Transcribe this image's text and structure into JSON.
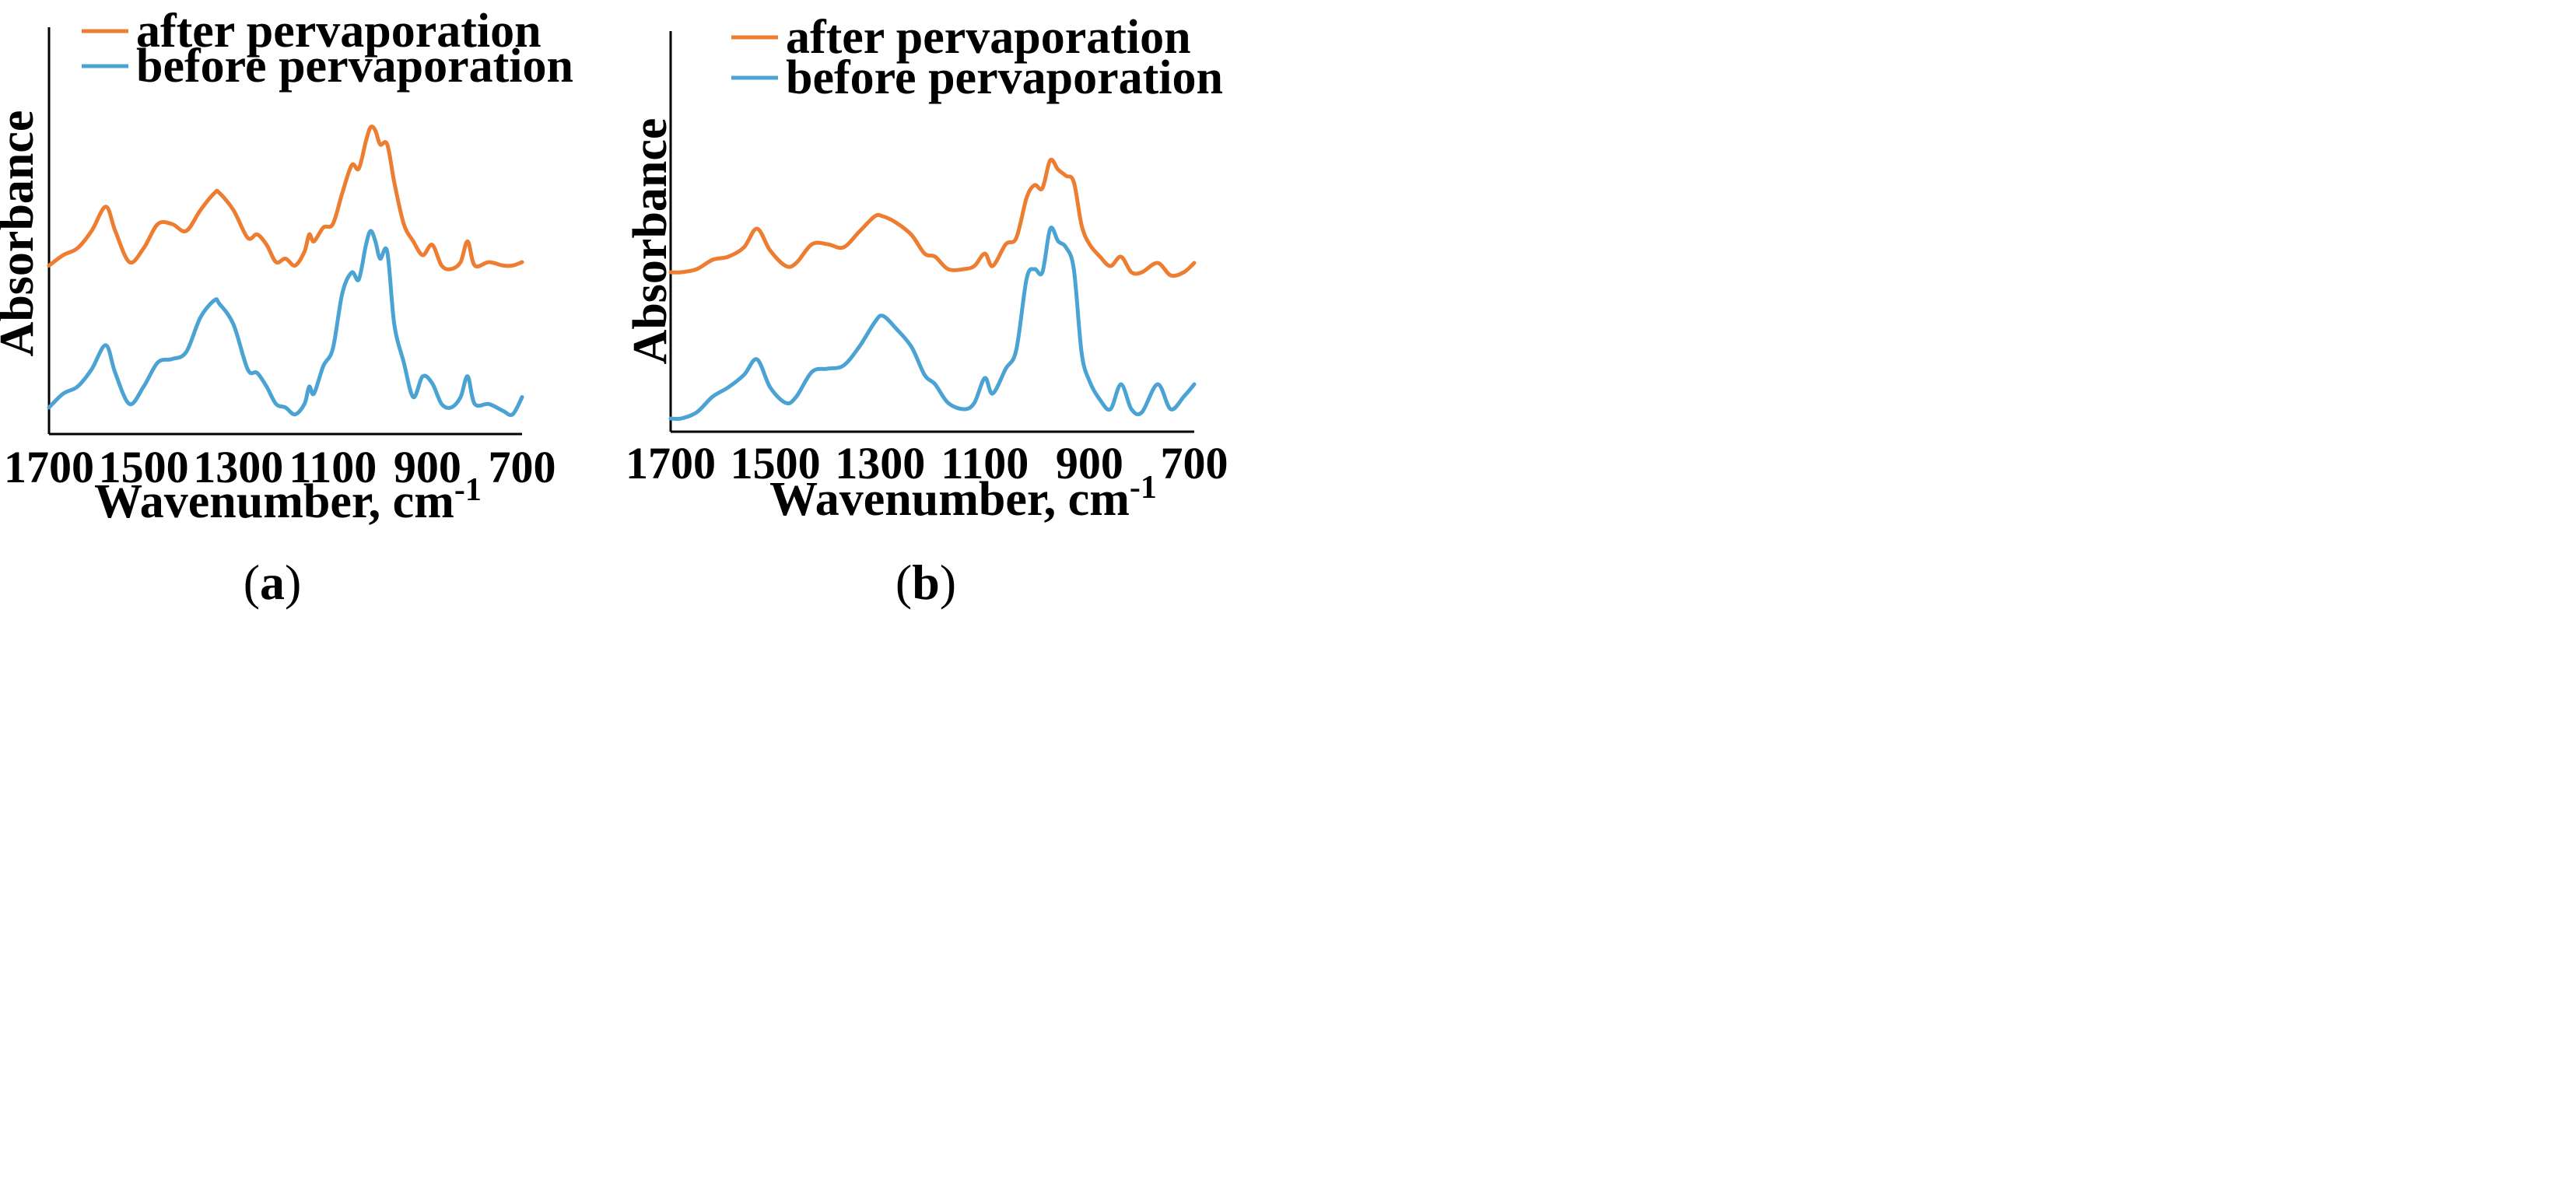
{
  "chart_data": [
    {
      "type": "line",
      "panel_label": "a",
      "title": "",
      "xlabel": "Wavenumber,  cm",
      "xlabel_superscript": "-1",
      "ylabel": "Absorbance",
      "xlim": [
        1700,
        700
      ],
      "ylim": [
        0,
        100
      ],
      "x_ticks": [
        1700,
        1500,
        1300,
        1100,
        900,
        700
      ],
      "legend_position": "top-left",
      "series": [
        {
          "name": "after pervaporation",
          "color": "#ED7D31",
          "x": [
            1700,
            1670,
            1640,
            1610,
            1580,
            1560,
            1530,
            1500,
            1470,
            1440,
            1410,
            1380,
            1350,
            1340,
            1310,
            1280,
            1260,
            1240,
            1220,
            1200,
            1180,
            1160,
            1150,
            1140,
            1120,
            1100,
            1080,
            1060,
            1045,
            1030,
            1020,
            1010,
            1000,
            985,
            970,
            950,
            930,
            910,
            890,
            870,
            850,
            830,
            815,
            800,
            770,
            740,
            720,
            700
          ],
          "values": [
            48,
            51,
            53,
            58,
            65,
            58,
            49,
            53,
            60,
            60,
            58,
            64,
            69,
            69,
            64,
            56,
            57,
            54,
            49,
            50,
            48,
            52,
            57,
            55,
            59,
            60,
            69,
            77,
            76,
            84,
            88,
            87,
            83,
            83,
            72,
            60,
            55,
            51,
            54,
            48,
            47,
            49,
            55,
            48,
            49,
            48,
            48,
            49
          ]
        },
        {
          "name": "before pervaporation",
          "color": "#4BA3D3",
          "x": [
            1700,
            1670,
            1640,
            1610,
            1580,
            1560,
            1530,
            1500,
            1470,
            1440,
            1410,
            1380,
            1350,
            1340,
            1310,
            1280,
            1260,
            1240,
            1220,
            1200,
            1180,
            1160,
            1150,
            1140,
            1120,
            1100,
            1080,
            1060,
            1045,
            1030,
            1020,
            1010,
            1000,
            985,
            970,
            950,
            930,
            910,
            890,
            870,
            850,
            830,
            815,
            800,
            770,
            740,
            720,
            700
          ],
          "values": [
            7,
            11,
            13,
            18,
            25,
            17,
            8,
            13,
            20,
            21,
            23,
            33,
            38,
            37,
            31,
            18,
            17,
            13,
            8,
            7,
            5,
            8,
            13,
            11,
            19,
            24,
            40,
            46,
            44,
            54,
            58,
            55,
            50,
            52,
            31,
            20,
            10,
            16,
            14,
            8,
            7,
            10,
            16,
            8,
            8,
            6,
            5,
            10
          ]
        }
      ]
    },
    {
      "type": "line",
      "panel_label": "b",
      "title": "",
      "xlabel": "Wavenumber,  cm",
      "xlabel_superscript": "-1",
      "ylabel": "Absorbance",
      "xlim": [
        1700,
        700
      ],
      "ylim": [
        0,
        100
      ],
      "x_ticks": [
        1700,
        1500,
        1300,
        1100,
        900,
        700
      ],
      "legend_position": "top-left",
      "series": [
        {
          "name": "after pervaporation",
          "color": "#ED7D31",
          "x": [
            1700,
            1680,
            1650,
            1620,
            1590,
            1560,
            1535,
            1510,
            1480,
            1460,
            1430,
            1400,
            1370,
            1340,
            1310,
            1295,
            1270,
            1240,
            1215,
            1195,
            1170,
            1140,
            1120,
            1100,
            1085,
            1060,
            1040,
            1020,
            1005,
            990,
            975,
            960,
            945,
            930,
            915,
            900,
            880,
            860,
            840,
            820,
            800,
            770,
            745,
            720,
            700
          ],
          "values": [
            50,
            50,
            51,
            54,
            55,
            58,
            64,
            57,
            52,
            53,
            59,
            59,
            58,
            63,
            68,
            68,
            66,
            62,
            56,
            55,
            51,
            51,
            52,
            56,
            52,
            59,
            61,
            74,
            78,
            77,
            86,
            83,
            81,
            79,
            65,
            59,
            55,
            52,
            55,
            50,
            50,
            53,
            49,
            50,
            53
          ]
        },
        {
          "name": "before pervaporation",
          "color": "#4BA3D3",
          "x": [
            1700,
            1680,
            1650,
            1620,
            1590,
            1560,
            1535,
            1510,
            1480,
            1460,
            1430,
            1400,
            1370,
            1340,
            1310,
            1295,
            1270,
            1240,
            1215,
            1195,
            1170,
            1140,
            1120,
            1100,
            1085,
            1060,
            1040,
            1020,
            1005,
            990,
            975,
            960,
            945,
            930,
            915,
            900,
            880,
            860,
            840,
            820,
            800,
            770,
            745,
            720,
            700
          ],
          "values": [
            3,
            3,
            5,
            10,
            13,
            17,
            22,
            13,
            8,
            10,
            18,
            19,
            20,
            26,
            34,
            36,
            32,
            26,
            17,
            14,
            8,
            6,
            8,
            16,
            11,
            19,
            25,
            48,
            51,
            50,
            64,
            60,
            58,
            51,
            24,
            15,
            9,
            6,
            14,
            6,
            5,
            14,
            6,
            10,
            14
          ]
        }
      ]
    }
  ]
}
